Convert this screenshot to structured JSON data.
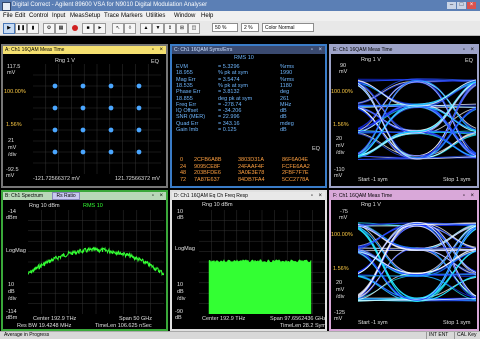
{
  "window": {
    "title": "Digital Correct - Agilent 89600 VSA for N9010 Digital Modulation Analyser"
  },
  "menu": [
    "File",
    "Edit",
    "Control",
    "Input",
    "MeasSetup",
    "Trace",
    "Markers",
    "Utilities",
    "Window",
    "Help"
  ],
  "toolbar": {
    "zoom": "50 %",
    "split_value": "2 %",
    "color_scheme": "Color Normal"
  },
  "colors": {
    "panel_a_border": "#f5e070",
    "panel_b_border": "#3aa83a",
    "panel_c_border": "#3a7cc8",
    "panel_d_border": "#e0e0e0",
    "panel_e_border": "#9da3c8",
    "panel_f_border": "#d9a8d9",
    "trace_green": "#33ff33",
    "text_cyan": "#6fb7ff",
    "eye_cyan": "#22e8ff",
    "eye_blue": "#1733ff"
  },
  "panels": {
    "a": {
      "header": "A: Ch1 16QAM Meas Time",
      "scale_top": "Rng 1 V",
      "corner": "EQ",
      "y_labels": [
        "117.5",
        "mV",
        "100.00%",
        "1.56%",
        "21",
        "mV",
        "/div",
        "-92.5",
        "mV"
      ],
      "x_left": "-121.72566372 mV",
      "x_right": "121.72566372 mV"
    },
    "b": {
      "header": "B: Ch1 Spectrum",
      "tab2": "Rs Ratio",
      "range": "Rng 10 dBm",
      "rms": "RMS 10",
      "y_labels": [
        "-14",
        "dBm",
        "10",
        "dB",
        "/div",
        "-114",
        "dBm"
      ],
      "ylabel": "LogMag",
      "footer_line1_left": "Center 192.9 THz",
      "footer_line1_right": "Span 50 GHz",
      "footer_line2_left": "Res BW 19.4248 MHz",
      "footer_line2_right": "TimeLen 106.625 nSec"
    },
    "c": {
      "header": "C: Ch1 16QAM Syms/Errs",
      "rms": "RMS 10",
      "metrics": [
        {
          "name": "EVM",
          "value": "= 5.3296",
          "unit": "%rms"
        },
        {
          "name": "18.955",
          "value": "% pk at sym",
          "unit": "1990"
        },
        {
          "name": "Mag Err",
          "value": "= 3.5474",
          "unit": "%rms"
        },
        {
          "name": "18.535",
          "value": "% pk at sym",
          "unit": "1180"
        },
        {
          "name": "Phase Err",
          "value": "= 3.8132",
          "unit": "deg"
        },
        {
          "name": "18.855",
          "value": "deg pk at sym",
          "unit": "261"
        },
        {
          "name": "Freq Err",
          "value": "= -278.74",
          "unit": "MHz"
        },
        {
          "name": "IQ Offset",
          "value": "= -34.206",
          "unit": "dB"
        },
        {
          "name": "SNR (MER)",
          "value": "= 22.996",
          "unit": "dB"
        },
        {
          "name": "Quad Err",
          "value": "= 343.16",
          "unit": "mdeg"
        },
        {
          "name": "Gain Imb",
          "value": "= 0.125",
          "unit": "dB"
        }
      ],
      "corner": "EQ",
      "symbols": [
        {
          "idx": "0",
          "a": "2CFB6A8B",
          "b": "3803D31A",
          "c": "86F6A04E"
        },
        {
          "idx": "24",
          "a": "9095CE8F",
          "b": "24FAAF4F",
          "c": "FCFE6AA2"
        },
        {
          "idx": "48",
          "a": "203BFDE6",
          "b": "3A0E3E78",
          "c": "2FBF7F7E"
        },
        {
          "idx": "72",
          "a": "7A87E637",
          "b": "84DB7FA4",
          "c": "5CC2778A"
        }
      ]
    },
    "d": {
      "header": "D: Ch1 16QAM Eq Ch Freq Resp",
      "range": "Rng 10 dBm",
      "y_labels": [
        "10",
        "dB",
        "10",
        "dB",
        "/div",
        "-90",
        "dB"
      ],
      "ylabel": "LogMag",
      "corner": "EQ",
      "footer_line1_left": "Center 192.9 THz",
      "footer_line1_right": "Span 97.6562436 GHz",
      "footer_line2_right": "TimeLen 28.2 Sym"
    },
    "e": {
      "header": "E: Ch1 16QAM Meas Time",
      "range": "Rng 1 V",
      "corner": "EQ",
      "y_labels": [
        "90",
        "mV",
        "100.00%",
        "1.56%",
        "20",
        "mV",
        "/div",
        "-110",
        "mV"
      ],
      "x_left": "Start -1 sym",
      "x_right": "Stop 1 sym"
    },
    "f": {
      "header": "F: Ch1 16QAM Meas Time",
      "range": "Rng 1 V",
      "y_labels": [
        "-75",
        "mV",
        "100.00%",
        "1.56%",
        "20",
        "mV",
        "/div",
        "-125",
        "mV"
      ],
      "x_left": "Start -1 sym",
      "x_right": "Stop 1 sym"
    }
  },
  "status": {
    "left": "Average in Progress",
    "right1": "INT ENT",
    "right2": "CAL Key"
  }
}
